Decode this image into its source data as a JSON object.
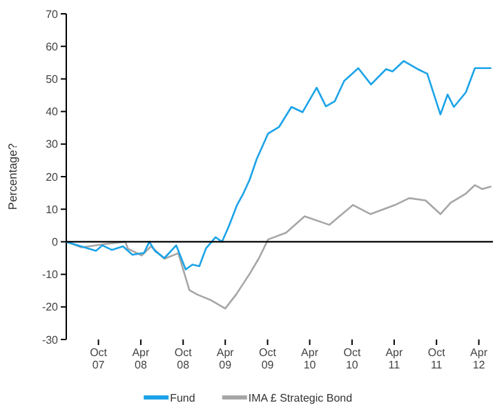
{
  "chart_data": {
    "type": "line",
    "ylabel": "Percentage?",
    "xlim": [
      "2007-05-15",
      "2012-06-01"
    ],
    "xticks": [
      {
        "value": "2007-10-01",
        "label": "Oct\n07"
      },
      {
        "value": "2008-04-01",
        "label": "Apr\n08"
      },
      {
        "value": "2008-10-01",
        "label": "Oct\n08"
      },
      {
        "value": "2009-04-01",
        "label": "Apr\n09"
      },
      {
        "value": "2009-10-01",
        "label": "Oct\n09"
      },
      {
        "value": "2010-04-01",
        "label": "Apr\n10"
      },
      {
        "value": "2010-10-01",
        "label": "Oct\n10"
      },
      {
        "value": "2011-04-01",
        "label": "Apr\n11"
      },
      {
        "value": "2011-10-01",
        "label": "Oct\n11"
      },
      {
        "value": "2012-04-01",
        "label": "Apr\n12"
      }
    ],
    "ylim": [
      -30,
      70
    ],
    "yticks": [
      -30,
      -20,
      -10,
      0,
      10,
      20,
      30,
      40,
      50,
      60,
      70
    ],
    "grid": false,
    "legend": "bottom",
    "line_style": "solid",
    "marker": "none",
    "ref_lines": [
      {
        "axis": "y",
        "value": 0,
        "color": "#000000"
      }
    ],
    "series": [
      {
        "name": "IMA £ Strategic Bond",
        "color": "#a6a6a6",
        "x": [
          "2007-05-15",
          "2007-07-20",
          "2007-10-28",
          "2008-01-25",
          "2008-02-05",
          "2008-04-05",
          "2008-05-15",
          "2008-07-12",
          "2008-09-10",
          "2008-10-28",
          "2008-12-01",
          "2009-01-28",
          "2009-04-01",
          "2009-05-18",
          "2009-07-15",
          "2009-08-25",
          "2009-10-03",
          "2009-12-20",
          "2010-03-10",
          "2010-06-25",
          "2010-10-05",
          "2010-12-20",
          "2011-04-05",
          "2011-06-05",
          "2011-08-15",
          "2011-10-18",
          "2011-12-01",
          "2012-02-05",
          "2012-03-15",
          "2012-04-15",
          "2012-05-25"
        ],
        "values": [
          0,
          -1.7,
          -0.7,
          0,
          -2.1,
          -4.2,
          -1.4,
          -5.2,
          -3.5,
          -14.8,
          -16.2,
          -17.9,
          -20.5,
          -16.2,
          -9.9,
          -5,
          0.7,
          2.8,
          7.8,
          5.2,
          11.3,
          8.5,
          11.3,
          13.4,
          12.7,
          8.5,
          12,
          14.8,
          17.4,
          16.2,
          17
        ]
      },
      {
        "name": "Fund",
        "color": "#1aa3e8",
        "x": [
          "2007-05-15",
          "2007-09-20",
          "2007-10-18",
          "2007-11-28",
          "2008-01-15",
          "2008-02-25",
          "2008-04-15",
          "2008-05-08",
          "2008-06-01",
          "2008-07-12",
          "2008-09-01",
          "2008-10-12",
          "2008-11-10",
          "2008-12-10",
          "2009-01-08",
          "2009-02-18",
          "2009-03-18",
          "2009-04-18",
          "2009-05-22",
          "2009-06-18",
          "2009-07-15",
          "2009-08-15",
          "2009-10-03",
          "2009-11-20",
          "2010-01-12",
          "2010-03-01",
          "2010-05-01",
          "2010-06-10",
          "2010-07-18",
          "2010-08-28",
          "2010-10-28",
          "2010-12-22",
          "2011-02-25",
          "2011-03-25",
          "2011-05-12",
          "2011-07-12",
          "2011-08-22",
          "2011-10-18",
          "2011-11-18",
          "2011-12-15",
          "2012-02-05",
          "2012-03-15",
          "2012-05-25"
        ],
        "values": [
          0,
          -2.8,
          -1.1,
          -2.5,
          -1.4,
          -4,
          -3.4,
          0,
          -2.8,
          -5,
          -1.1,
          -8.5,
          -7,
          -7.5,
          -2,
          1.4,
          0,
          5,
          11.3,
          14.8,
          19,
          25.4,
          33.2,
          35.3,
          41.4,
          39.8,
          47.3,
          41.6,
          43.1,
          49.4,
          53.3,
          48.3,
          53,
          52.3,
          55.5,
          53,
          51.6,
          39.1,
          45.2,
          41.4,
          45.9,
          53.3,
          53.3
        ]
      }
    ]
  }
}
